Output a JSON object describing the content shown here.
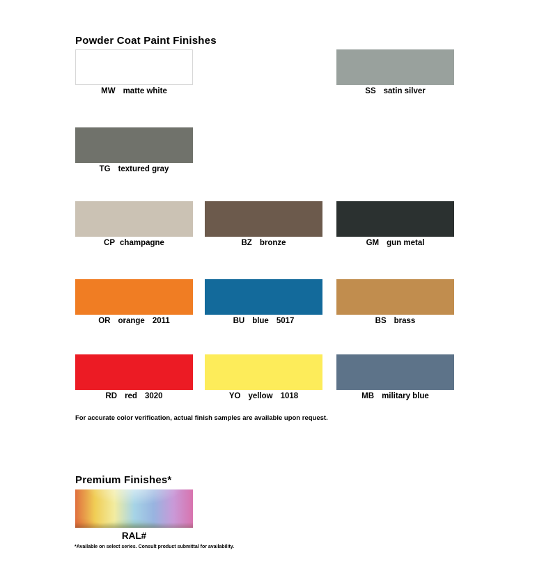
{
  "page": {
    "title": "Powder Coat Paint Finishes",
    "note": "For accurate color verification, actual finish samples are available upon request.",
    "premium_title": "Premium Finishes*",
    "premium_footnote": "*Available on select series. Consult product submittal for availability."
  },
  "swatches": [
    {
      "code": "MW",
      "name": "matte white",
      "color": "#ffffff",
      "border": "#d8d8d8"
    },
    {
      "code": "SS",
      "name": "satin silver",
      "color": "#99a19d"
    },
    {
      "code": "TG",
      "name": "textured gray",
      "color": "#70726b"
    },
    {
      "code": "CP",
      "name": "champagne",
      "color": "#cbc2b4"
    },
    {
      "code": "BZ",
      "name": "bronze",
      "color": "#6c5a4c"
    },
    {
      "code": "GM",
      "name": "gun metal",
      "color": "#2b3130"
    },
    {
      "code": "OR",
      "name": "orange",
      "ral": "2011",
      "color": "#f07d23"
    },
    {
      "code": "BU",
      "name": "blue",
      "ral": "5017",
      "color": "#136a9b"
    },
    {
      "code": "BS",
      "name": "brass",
      "color": "#c18d4e"
    },
    {
      "code": "RD",
      "name": "red",
      "ral": "3020",
      "color": "#ec1b24"
    },
    {
      "code": "YO",
      "name": "yellow",
      "ral": "1018",
      "color": "#fdec5a"
    },
    {
      "code": "MB",
      "name": "military blue",
      "color": "#5d7389"
    }
  ],
  "premium": {
    "label": "RAL#",
    "gradient_colors": [
      "#e0703f",
      "#f0cd55",
      "#f2eca0",
      "#a6d4e6",
      "#98b4e0",
      "#c99ad8",
      "#d873ae"
    ]
  }
}
